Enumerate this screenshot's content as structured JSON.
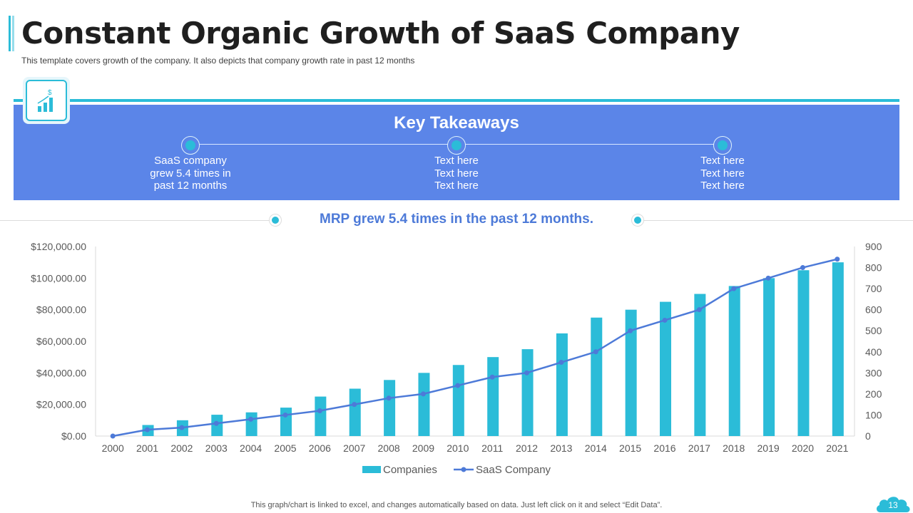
{
  "header": {
    "title": "Constant Organic Growth of SaaS Company",
    "subtitle": "This template covers growth  of the company. It also depicts that company growth rate in past 12 months"
  },
  "takeaways": {
    "title": "Key  Takeaways",
    "items": [
      {
        "lines": [
          "SaaS company",
          "grew 5.4 times in",
          "past 12 months"
        ]
      },
      {
        "lines": [
          "Text here",
          "Text here",
          "Text here"
        ]
      },
      {
        "lines": [
          "Text here",
          "Text here",
          "Text here"
        ]
      }
    ]
  },
  "headline": "MRP grew 5.4 times in the past 12 months.",
  "chart_data": {
    "type": "bar",
    "categories": [
      "2000",
      "2001",
      "2002",
      "2003",
      "2004",
      "2005",
      "2006",
      "2007",
      "2008",
      "2009",
      "2010",
      "2011",
      "2012",
      "2013",
      "2014",
      "2015",
      "2016",
      "2017",
      "2018",
      "2019",
      "2020",
      "2021"
    ],
    "series": [
      {
        "name": "Companies",
        "type": "bar",
        "axis": "left",
        "values": [
          0,
          7000,
          10000,
          13500,
          15000,
          18000,
          25000,
          30000,
          35500,
          40000,
          45000,
          50000,
          55000,
          65000,
          75000,
          80000,
          85000,
          90000,
          95000,
          100000,
          105000,
          110000
        ]
      },
      {
        "name": "SaaS Company",
        "type": "line",
        "axis": "right",
        "values": [
          0,
          30,
          40,
          60,
          80,
          100,
          120,
          150,
          180,
          200,
          240,
          280,
          300,
          350,
          400,
          500,
          550,
          600,
          700,
          750,
          800,
          840
        ]
      }
    ],
    "ylim_left": [
      0,
      120000
    ],
    "yticks_left": [
      "$0.00",
      "$20,000.00",
      "$40,000.00",
      "$60,000.00",
      "$80,000.00",
      "$100,000.00",
      "$120,000.00"
    ],
    "ylim_right": [
      0,
      900
    ],
    "yticks_right": [
      "0",
      "100",
      "200",
      "300",
      "400",
      "500",
      "600",
      "700",
      "800",
      "900"
    ],
    "legend_position": "bottom",
    "grid": false,
    "colors": {
      "bar": "#2bbcd8",
      "line": "#4d7ad8"
    }
  },
  "footer": "This graph/chart is linked to excel,  and changes automatically based on data. Just left click on it and select “Edit Data”.",
  "page_number": "13",
  "colors": {
    "accent": "#2bbcd8",
    "panel": "#5b85e8",
    "headline": "#4d7ad8"
  }
}
